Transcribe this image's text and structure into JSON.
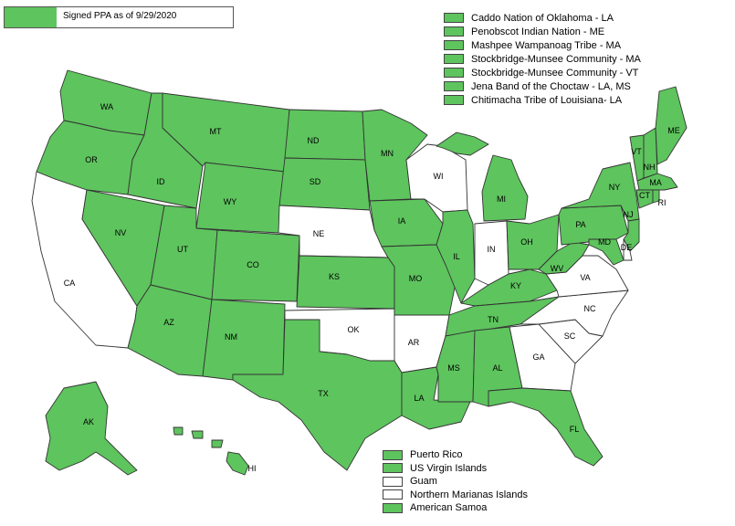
{
  "colors": {
    "signed": "#5ec45e",
    "unsigned": "#ffffff",
    "border": "#333333"
  },
  "legend": {
    "label": "Signed PPA as of 9/29/2020"
  },
  "tribes": [
    {
      "label": "Caddo Nation of Oklahoma - LA",
      "signed": true
    },
    {
      "label": "Penobscot Indian Nation - ME",
      "signed": true
    },
    {
      "label": "Mashpee Wampanoag Tribe - MA",
      "signed": true
    },
    {
      "label": "Stockbridge-Munsee Community - MA",
      "signed": true
    },
    {
      "label": "Stockbridge-Munsee Community - VT",
      "signed": true
    },
    {
      "label": "Jena Band of the Choctaw - LA, MS",
      "signed": true
    },
    {
      "label": "Chitimacha Tribe of Louisiana- LA",
      "signed": true
    }
  ],
  "territories": [
    {
      "label": "Puerto Rico",
      "signed": true
    },
    {
      "label": "US Virgin Islands",
      "signed": true
    },
    {
      "label": "Guam",
      "signed": false
    },
    {
      "label": "Northern Marianas Islands",
      "signed": false
    },
    {
      "label": "American Samoa",
      "signed": true
    }
  ],
  "states": {
    "WA": true,
    "OR": true,
    "CA": false,
    "ID": true,
    "NV": true,
    "MT": true,
    "WY": true,
    "UT": true,
    "AZ": true,
    "CO": true,
    "NM": true,
    "ND": true,
    "SD": true,
    "NE": false,
    "KS": true,
    "OK": false,
    "TX": true,
    "MN": true,
    "IA": true,
    "MO": true,
    "AR": false,
    "LA": true,
    "WI": false,
    "IL": true,
    "MI": true,
    "IN": false,
    "OH": true,
    "KY": true,
    "TN": true,
    "MS": true,
    "AL": true,
    "GA": false,
    "FL": true,
    "SC": false,
    "NC": false,
    "VA": false,
    "WV": true,
    "PA": true,
    "NY": true,
    "VT": true,
    "NH": true,
    "ME": true,
    "MA": true,
    "CT": true,
    "RI": true,
    "NJ": true,
    "DE": false,
    "MD": true,
    "AK": true,
    "HI": true
  }
}
